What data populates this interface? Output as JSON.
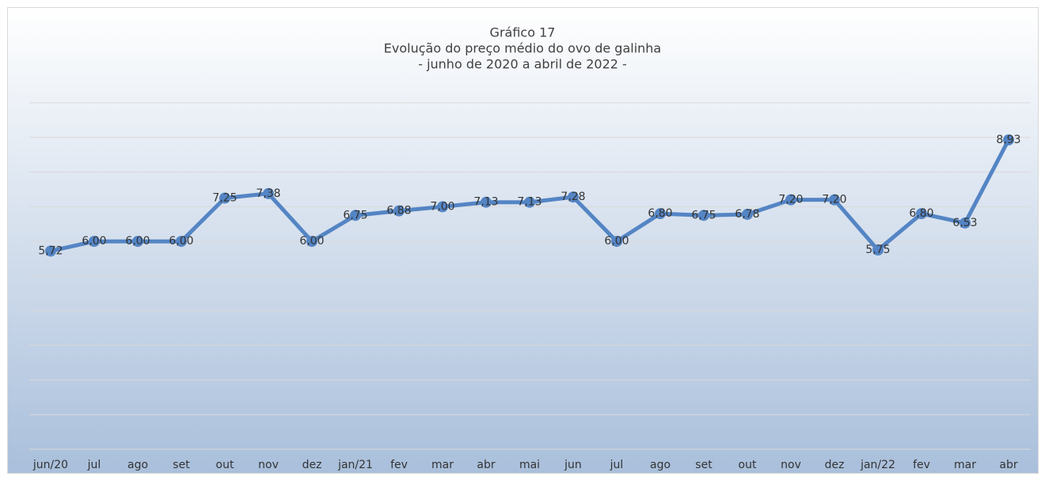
{
  "chart_data": {
    "type": "line",
    "title": [
      "Gráfico 17",
      "Evolução do preço médio do ovo de galinha",
      "- junho de 2020 a abril de 2022 -"
    ],
    "categories": [
      "jun/20",
      "jul",
      "ago",
      "set",
      "out",
      "nov",
      "dez",
      "jan/21",
      "fev",
      "mar",
      "abr",
      "mai",
      "jun",
      "jul",
      "ago",
      "set",
      "out",
      "nov",
      "dez",
      "jan/22",
      "fev",
      "mar",
      "abr"
    ],
    "series": [
      {
        "color": "#5485c4",
        "values": [
          5.72,
          6.0,
          6.0,
          6.0,
          7.25,
          7.38,
          6.0,
          6.75,
          6.88,
          7.0,
          7.13,
          7.13,
          7.28,
          6.0,
          6.8,
          6.75,
          6.78,
          7.2,
          7.2,
          5.75,
          6.8,
          6.53,
          8.93
        ],
        "value_labels": [
          "5,72",
          "6,00",
          "6,00",
          "6,00",
          "7,25",
          "7,38",
          "6,00",
          "6,75",
          "6,88",
          "7,00",
          "7,13",
          "7,13",
          "7,28",
          "6,00",
          "6,80",
          "6,75",
          "6,78",
          "7,20",
          "7,20",
          "5,75",
          "6,80",
          "6,53",
          "8,93"
        ]
      }
    ],
    "ylim": [
      0,
      10
    ],
    "yticks": [
      0,
      1,
      2,
      3,
      4,
      5,
      6,
      7,
      8,
      9,
      10
    ],
    "grid": true
  }
}
